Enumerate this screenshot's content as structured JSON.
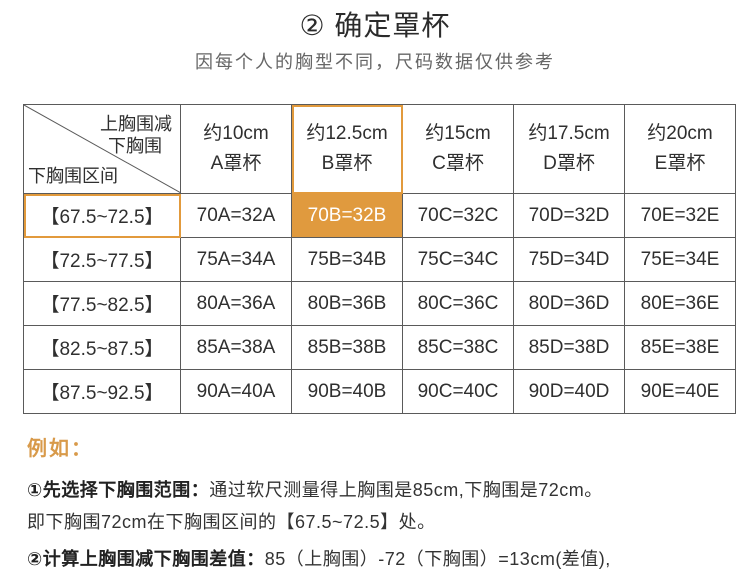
{
  "header": {
    "title": "② 确定罩杯",
    "subtitle": "因每个人的胸型不同，尺码数据仅供参考"
  },
  "table": {
    "corner": {
      "top_line1": "上胸围减",
      "top_line2": "下胸围",
      "bottom": "下胸围区间"
    },
    "columns": [
      {
        "diff": "约10cm",
        "cup": "A罩杯"
      },
      {
        "diff": "约12.5cm",
        "cup": "B罩杯"
      },
      {
        "diff": "约15cm",
        "cup": "C罩杯"
      },
      {
        "diff": "约17.5cm",
        "cup": "D罩杯"
      },
      {
        "diff": "约20cm",
        "cup": "E罩杯"
      }
    ],
    "rows": [
      {
        "range": "【67.5~72.5】",
        "cells": [
          "70A=32A",
          "70B=32B",
          "70C=32C",
          "70D=32D",
          "70E=32E"
        ]
      },
      {
        "range": "【72.5~77.5】",
        "cells": [
          "75A=34A",
          "75B=34B",
          "75C=34C",
          "75D=34D",
          "75E=34E"
        ]
      },
      {
        "range": "【77.5~82.5】",
        "cells": [
          "80A=36A",
          "80B=36B",
          "80C=36C",
          "80D=36D",
          "80E=36E"
        ]
      },
      {
        "range": "【82.5~87.5】",
        "cells": [
          "85A=38A",
          "85B=38B",
          "85C=38C",
          "85D=38D",
          "85E=38E"
        ]
      },
      {
        "range": "【87.5~92.5】",
        "cells": [
          "90A=40A",
          "90B=40B",
          "90C=40C",
          "90D=40D",
          "90E=40E"
        ]
      }
    ],
    "highlight_color": "#e09a3e"
  },
  "example": {
    "label": "例如：",
    "step1_title": "①先选择下胸围范围：",
    "step1_text": "通过软尺测量得上胸围是85cm,下胸围是72cm。",
    "step1_line2": "即下胸围72cm在下胸围区间的【67.5~72.5】处。",
    "step2_title": "②计算上胸围减下胸围差值：",
    "step2_text": "85（上胸围）-72（下胸围）=13cm(差值),"
  }
}
